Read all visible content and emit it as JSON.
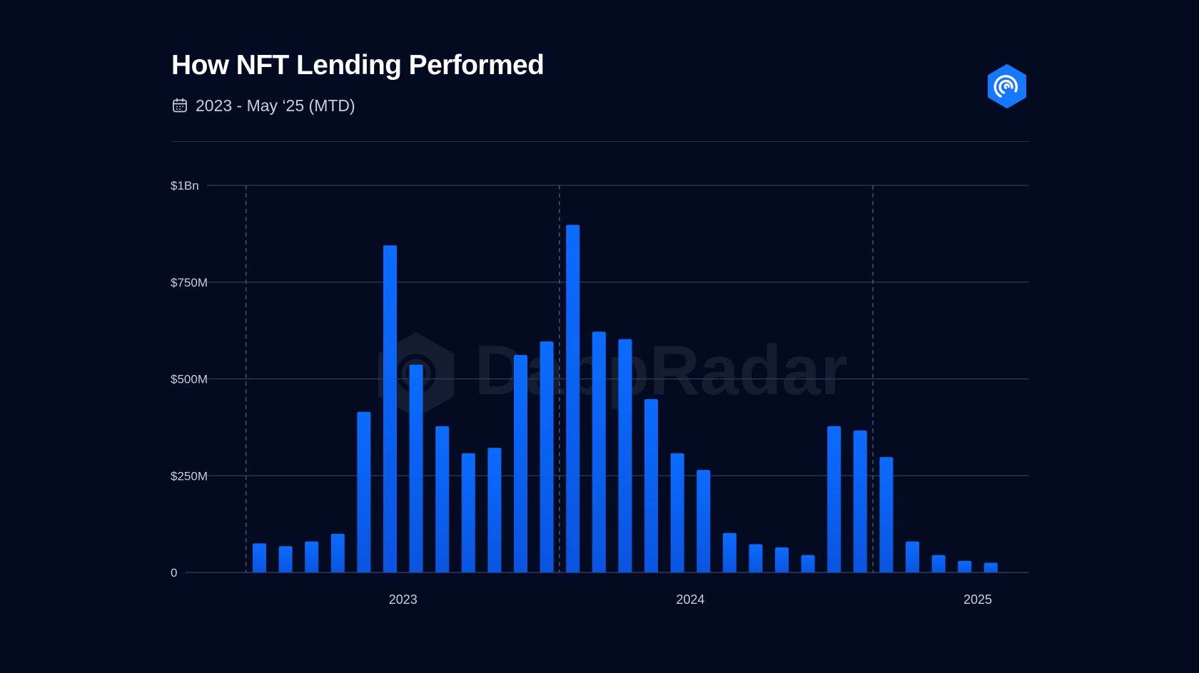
{
  "header": {
    "title": "How NFT Lending Performed",
    "subtitle": "2023 - May ‘25 (MTD)",
    "calendar_icon": "calendar-icon",
    "brand_icon": "dappradar-logo-icon"
  },
  "watermark": {
    "text": "DappRadar"
  },
  "colors": {
    "background": "#020b22",
    "bar_top": "#0b6cff",
    "bar_bottom": "#0a55e0",
    "grid": "#333d57",
    "axis_text": "#c9ced8",
    "brand": "#1677ff"
  },
  "chart_data": {
    "type": "bar",
    "title": "How NFT Lending Performed",
    "subtitle": "2023 - May ‘25 (MTD)",
    "xlabel": "",
    "ylabel": "",
    "ylim": [
      0,
      1000000000
    ],
    "y_ticks": [
      {
        "value": 0,
        "label": "0"
      },
      {
        "value": 250000000,
        "label": "$250M"
      },
      {
        "value": 500000000,
        "label": "$500M"
      },
      {
        "value": 750000000,
        "label": "$750M"
      },
      {
        "value": 1000000000,
        "label": "$1Bn"
      }
    ],
    "x_tick_labels": [
      {
        "label": "2023",
        "after_bar_index": 5
      },
      {
        "label": "2024",
        "after_bar_index": 16
      },
      {
        "label": "2025",
        "after_bar_index": 27
      }
    ],
    "year_separators_after_bar_index": [
      -1,
      11,
      23
    ],
    "grid": true,
    "legend": "none",
    "values": [
      75000000,
      68000000,
      80000000,
      100000000,
      415000000,
      845000000,
      537000000,
      378000000,
      308000000,
      322000000,
      562000000,
      597000000,
      898000000,
      622000000,
      603000000,
      448000000,
      308000000,
      265000000,
      102000000,
      73000000,
      65000000,
      45000000,
      378000000,
      367000000,
      298000000,
      80000000,
      45000000,
      30000000,
      25000000
    ]
  }
}
